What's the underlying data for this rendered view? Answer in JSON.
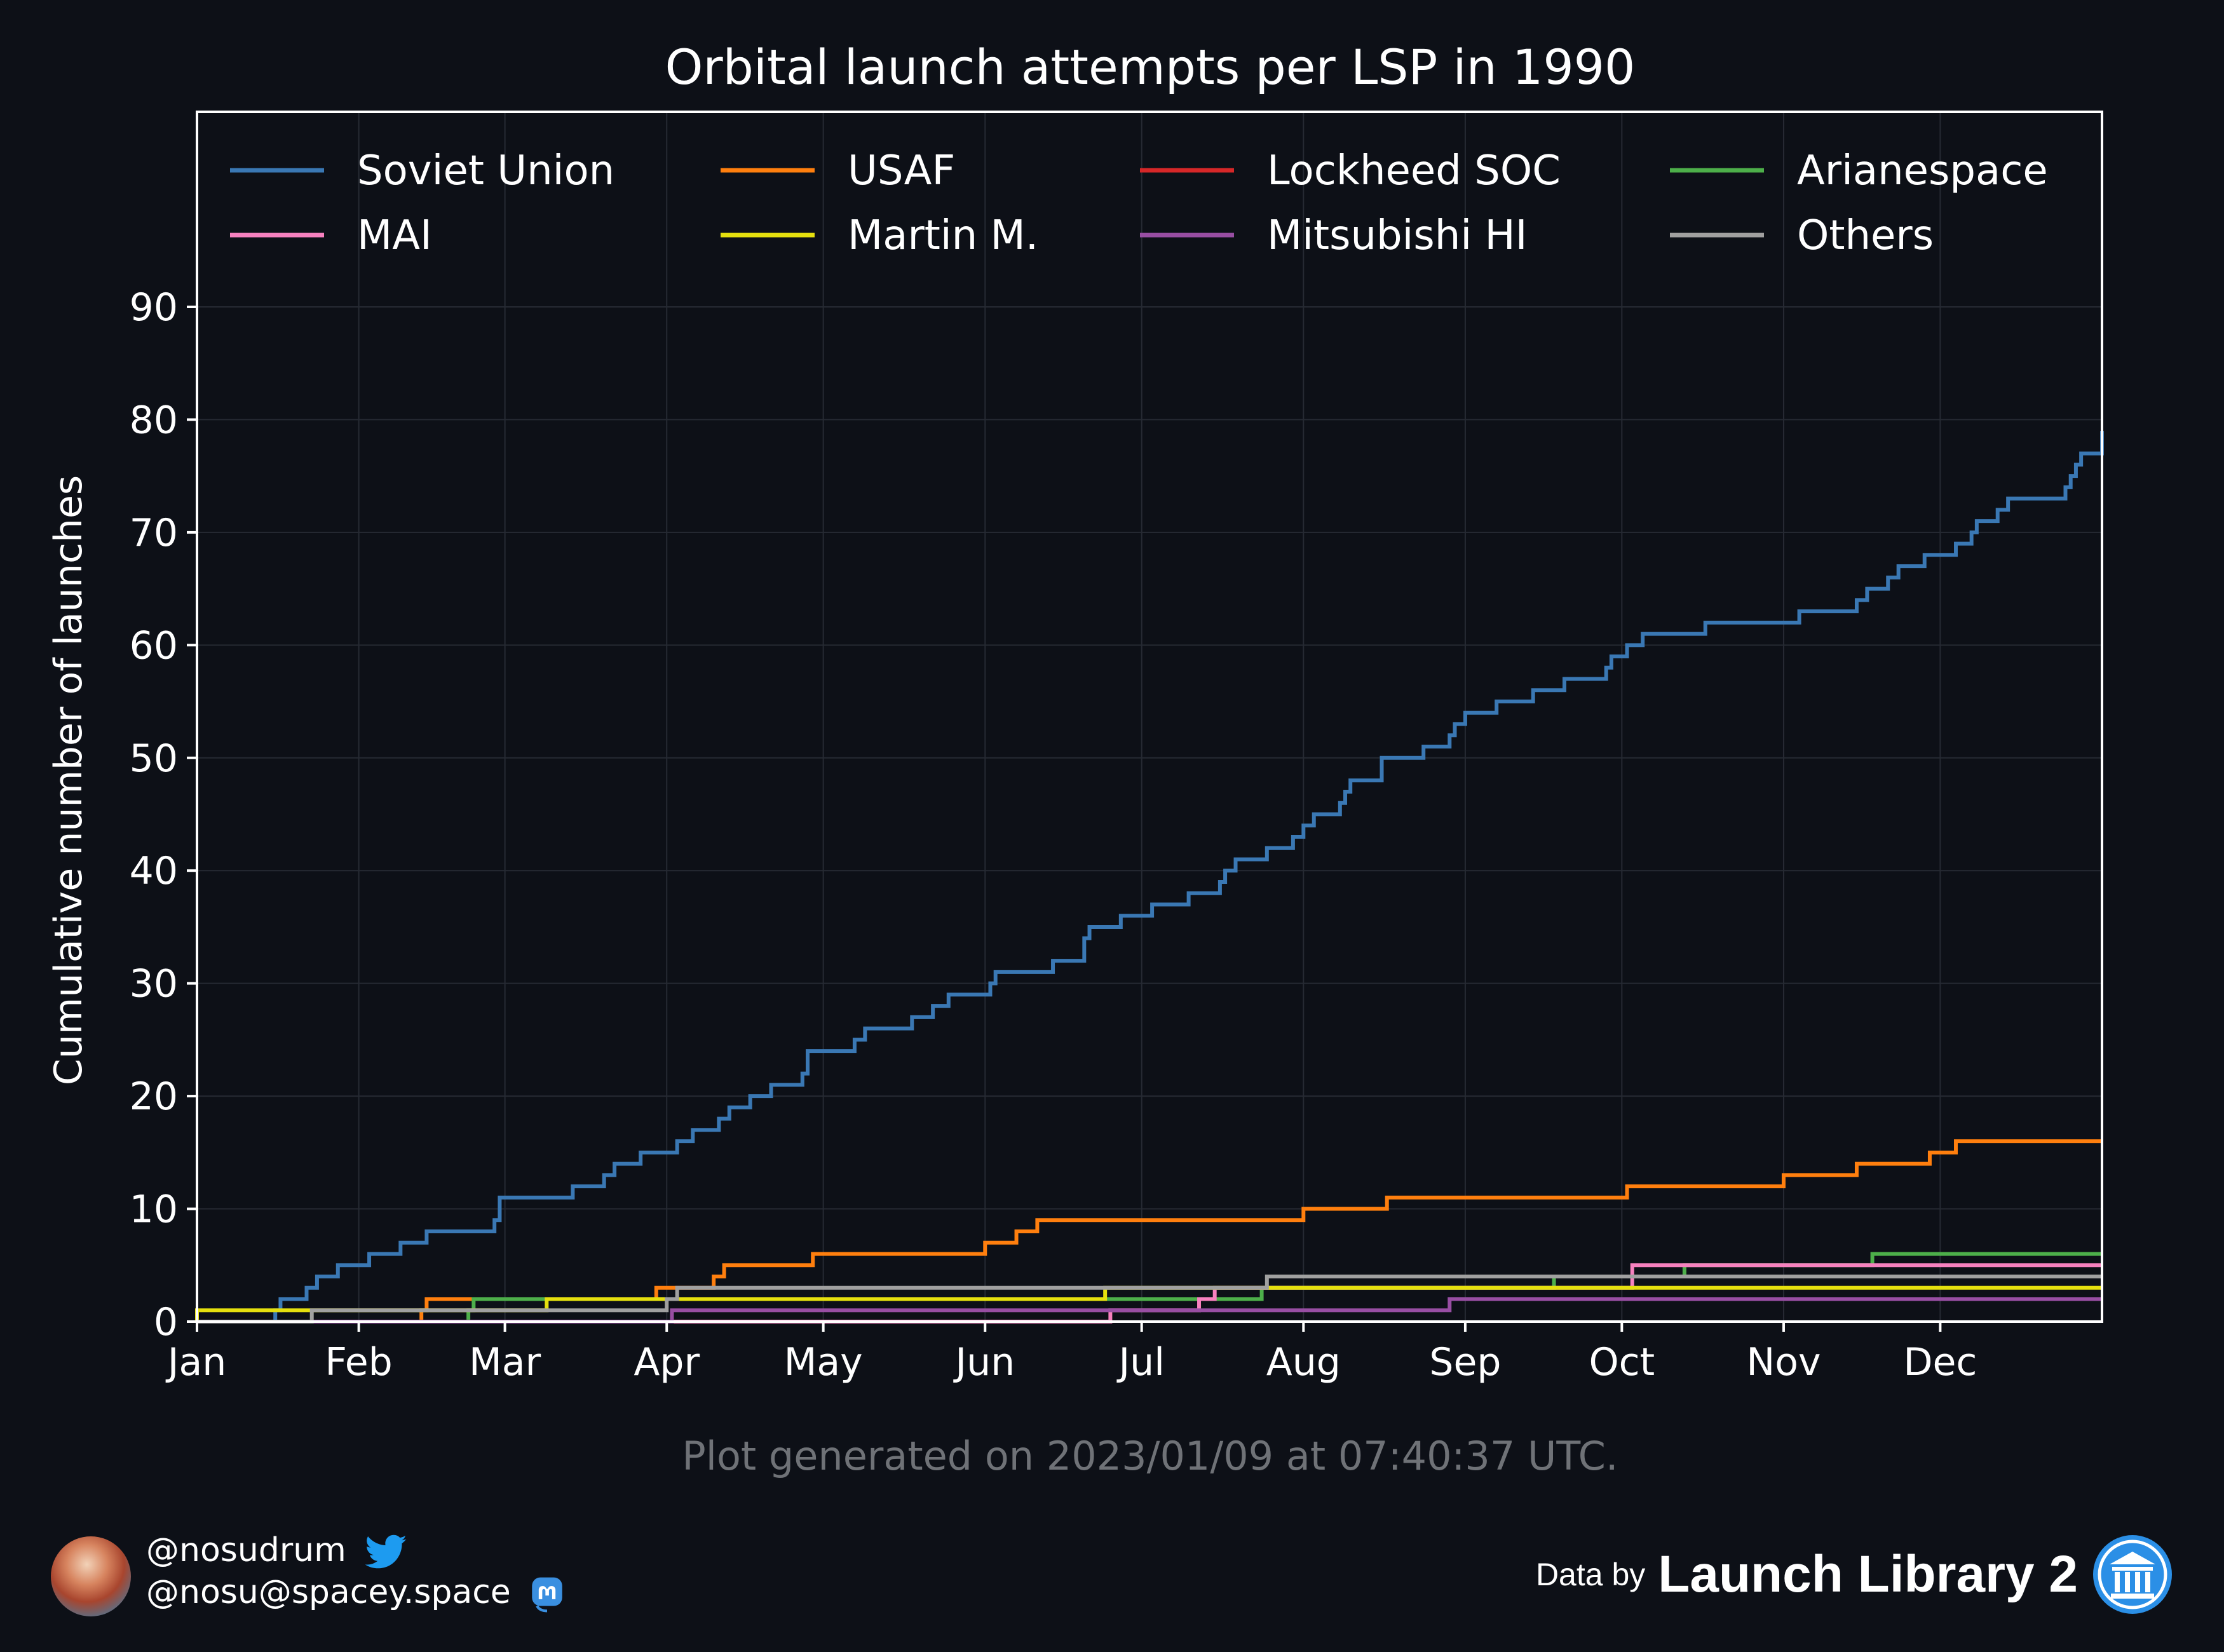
{
  "chart_data": {
    "type": "line",
    "title": "Orbital launch attempts per LSP in 1990",
    "ylabel": "Cumulative number of launches",
    "xlabel": "",
    "x_axis": "day of year 1990 (day 1 = Jan 1)",
    "xlim": [
      1,
      366
    ],
    "ylim": [
      0,
      90
    ],
    "yticks": [
      0,
      10,
      20,
      30,
      40,
      50,
      60,
      70,
      80,
      90
    ],
    "month_labels": [
      "Jan",
      "Feb",
      "Mar",
      "Apr",
      "May",
      "Jun",
      "Jul",
      "Aug",
      "Sep",
      "Oct",
      "Nov",
      "Dec"
    ],
    "month_start_days": [
      1,
      32,
      60,
      91,
      121,
      152,
      182,
      213,
      244,
      274,
      305,
      335
    ],
    "grid": true,
    "legend_position": "top, 4 columns",
    "series": [
      {
        "name": "Soviet Union",
        "color": "#3a78b4",
        "steps": [
          [
            16,
            1
          ],
          [
            17,
            2
          ],
          [
            22,
            3
          ],
          [
            24,
            4
          ],
          [
            28,
            5
          ],
          [
            34,
            6
          ],
          [
            40,
            7
          ],
          [
            45,
            8
          ],
          [
            58,
            9
          ],
          [
            59,
            10
          ],
          [
            59,
            11
          ],
          [
            73,
            12
          ],
          [
            79,
            13
          ],
          [
            81,
            14
          ],
          [
            86,
            15
          ],
          [
            93,
            16
          ],
          [
            96,
            17
          ],
          [
            101,
            18
          ],
          [
            103,
            19
          ],
          [
            107,
            20
          ],
          [
            111,
            21
          ],
          [
            117,
            22
          ],
          [
            118,
            23
          ],
          [
            118,
            24
          ],
          [
            127,
            25
          ],
          [
            129,
            26
          ],
          [
            138,
            27
          ],
          [
            142,
            28
          ],
          [
            145,
            29
          ],
          [
            153,
            30
          ],
          [
            154,
            31
          ],
          [
            165,
            32
          ],
          [
            171,
            33
          ],
          [
            171,
            34
          ],
          [
            172,
            35
          ],
          [
            178,
            36
          ],
          [
            184,
            37
          ],
          [
            191,
            38
          ],
          [
            197,
            39
          ],
          [
            198,
            40
          ],
          [
            200,
            41
          ],
          [
            206,
            42
          ],
          [
            211,
            43
          ],
          [
            213,
            44
          ],
          [
            215,
            45
          ],
          [
            220,
            46
          ],
          [
            221,
            47
          ],
          [
            222,
            48
          ],
          [
            228,
            49
          ],
          [
            228,
            50
          ],
          [
            236,
            51
          ],
          [
            241,
            52
          ],
          [
            242,
            53
          ],
          [
            244,
            54
          ],
          [
            250,
            55
          ],
          [
            257,
            56
          ],
          [
            263,
            57
          ],
          [
            271,
            58
          ],
          [
            272,
            59
          ],
          [
            275,
            60
          ],
          [
            278,
            61
          ],
          [
            290,
            62
          ],
          [
            308,
            63
          ],
          [
            319,
            64
          ],
          [
            321,
            65
          ],
          [
            325,
            66
          ],
          [
            327,
            67
          ],
          [
            332,
            68
          ],
          [
            338,
            69
          ],
          [
            341,
            70
          ],
          [
            342,
            71
          ],
          [
            346,
            72
          ],
          [
            348,
            73
          ],
          [
            359,
            74
          ],
          [
            360,
            75
          ],
          [
            361,
            76
          ],
          [
            362,
            77
          ],
          [
            366,
            78
          ],
          [
            368,
            79
          ]
        ]
      },
      {
        "name": "USAF",
        "color": "#ff7f0e",
        "steps": [
          [
            44,
            1
          ],
          [
            45,
            2
          ],
          [
            89,
            3
          ],
          [
            100,
            4
          ],
          [
            102,
            5
          ],
          [
            103,
            5
          ],
          [
            119,
            6
          ],
          [
            152,
            7
          ],
          [
            158,
            8
          ],
          [
            162,
            9
          ],
          [
            213,
            10
          ],
          [
            229,
            11
          ],
          [
            275,
            12
          ],
          [
            305,
            13
          ],
          [
            319,
            14
          ],
          [
            333,
            15
          ],
          [
            338,
            16
          ]
        ]
      },
      {
        "name": "Lockheed SOC",
        "color": "#d62728",
        "steps": []
      },
      {
        "name": "Arianespace",
        "color": "#4daf4a",
        "steps": [
          [
            53,
            1
          ],
          [
            54,
            2
          ],
          [
            205,
            3
          ],
          [
            261,
            4
          ],
          [
            286,
            5
          ],
          [
            322,
            6
          ]
        ]
      },
      {
        "name": "MAI",
        "color": "#f781bf",
        "steps": [
          [
            176,
            1
          ],
          [
            193,
            2
          ],
          [
            196,
            3
          ],
          [
            276,
            4
          ],
          [
            276,
            5
          ]
        ]
      },
      {
        "name": "Martin M.",
        "color": "#e5e00e",
        "steps": [
          [
            1,
            1
          ],
          [
            68,
            2
          ],
          [
            175,
            3
          ]
        ]
      },
      {
        "name": "Mitsubishi HI",
        "color": "#984ea3",
        "steps": [
          [
            92,
            1
          ],
          [
            241,
            2
          ]
        ]
      },
      {
        "name": "Others",
        "color": "#a0a0a0",
        "steps": [
          [
            23,
            1
          ],
          [
            91,
            2
          ],
          [
            93,
            3
          ],
          [
            206,
            4
          ]
        ]
      }
    ]
  },
  "footer": {
    "generated": "Plot generated on 2023/01/09 at 07:40:37 UTC.",
    "twitter_handle": "@nosudrum",
    "mastodon_handle": "@nosu@spacey.space",
    "data_by": "Data by",
    "source_name": "Launch Library 2"
  }
}
